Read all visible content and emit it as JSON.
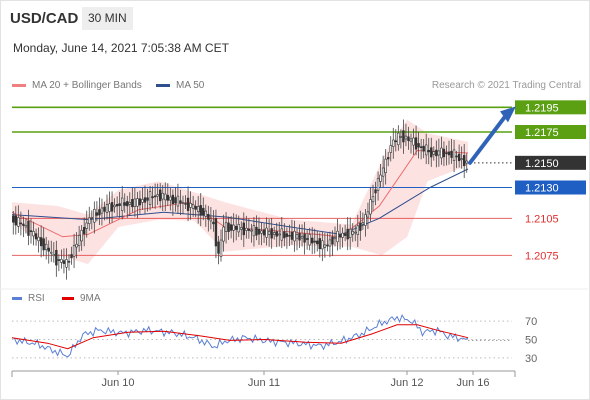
{
  "header": {
    "symbol": "USD/CAD",
    "timeframe": "30 MIN",
    "datetime": "Monday, June 14, 2021 7:05:38 AM CET",
    "credit": "Research © 2021 Trading Central"
  },
  "legend": {
    "bollinger_label": "MA 20 + Bollinger Bands",
    "bollinger_color": "#f08080",
    "ma50_label": "MA 50",
    "ma50_color": "#2f4f8f",
    "rsi_label": "RSI",
    "rsi_color": "#5b7fd4",
    "rsi_ma_label": "9MA",
    "rsi_ma_color": "#e00000"
  },
  "chart_data": [
    {
      "type": "candlestick",
      "title": "",
      "y_range": [
        1.2055,
        1.2205
      ],
      "x_ticks": [
        "Jun 10",
        "Jun 11",
        "Jun 12",
        "Jun 16"
      ],
      "current_price": 1.215,
      "levels": [
        {
          "value": 1.2195,
          "label": "1.2195",
          "kind": "resistance",
          "color": "#5aa012"
        },
        {
          "value": 1.2175,
          "label": "1.2175",
          "kind": "resistance",
          "color": "#5aa012"
        },
        {
          "value": 1.215,
          "label": "1.2150",
          "kind": "last",
          "color": "#333333"
        },
        {
          "value": 1.213,
          "label": "1.2130",
          "kind": "pivot",
          "color": "#1f5fc4"
        },
        {
          "value": 1.2105,
          "label": "1.2105",
          "kind": "support",
          "color": "#e03030"
        },
        {
          "value": 1.2075,
          "label": "1.2075",
          "kind": "support",
          "color": "#e03030"
        }
      ],
      "forecast_arrow": {
        "from": 1.215,
        "to": 1.2195,
        "direction": "up"
      },
      "path_points": [
        [
          0,
          1.2105
        ],
        [
          6,
          1.2098
        ],
        [
          12,
          1.2085
        ],
        [
          18,
          1.2072
        ],
        [
          22,
          1.2068
        ],
        [
          26,
          1.2085
        ],
        [
          31,
          1.2105
        ],
        [
          36,
          1.2112
        ],
        [
          42,
          1.2116
        ],
        [
          50,
          1.2118
        ],
        [
          58,
          1.2124
        ],
        [
          64,
          1.212
        ],
        [
          70,
          1.2116
        ],
        [
          76,
          1.211
        ],
        [
          80,
          1.21
        ],
        [
          82,
          1.2075
        ],
        [
          84,
          1.2098
        ],
        [
          90,
          1.2097
        ],
        [
          98,
          1.2094
        ],
        [
          106,
          1.2092
        ],
        [
          114,
          1.209
        ],
        [
          120,
          1.2086
        ],
        [
          124,
          1.2082
        ],
        [
          128,
          1.209
        ],
        [
          136,
          1.2094
        ],
        [
          140,
          1.2105
        ],
        [
          144,
          1.213
        ],
        [
          148,
          1.215
        ],
        [
          150,
          1.2165
        ],
        [
          154,
          1.2172
        ],
        [
          158,
          1.2168
        ],
        [
          162,
          1.2162
        ],
        [
          166,
          1.2158
        ],
        [
          172,
          1.2158
        ],
        [
          176,
          1.2155
        ],
        [
          180,
          1.215
        ]
      ],
      "ma20_points": [
        [
          0,
          1.211
        ],
        [
          20,
          1.209
        ],
        [
          30,
          1.2092
        ],
        [
          50,
          1.2112
        ],
        [
          70,
          1.2118
        ],
        [
          84,
          1.2098
        ],
        [
          110,
          1.2094
        ],
        [
          130,
          1.209
        ],
        [
          145,
          1.2115
        ],
        [
          160,
          1.216
        ],
        [
          180,
          1.2158
        ]
      ],
      "ma50_points": [
        [
          0,
          1.2108
        ],
        [
          30,
          1.2104
        ],
        [
          60,
          1.211
        ],
        [
          85,
          1.2106
        ],
        [
          110,
          1.2098
        ],
        [
          130,
          1.2092
        ],
        [
          145,
          1.2105
        ],
        [
          165,
          1.213
        ],
        [
          180,
          1.2145
        ]
      ],
      "bb_upper_points": [
        [
          0,
          1.2118
        ],
        [
          18,
          1.2115
        ],
        [
          30,
          1.2108
        ],
        [
          42,
          1.2128
        ],
        [
          58,
          1.2135
        ],
        [
          72,
          1.2126
        ],
        [
          84,
          1.2118
        ],
        [
          110,
          1.2104
        ],
        [
          134,
          1.21
        ],
        [
          148,
          1.216
        ],
        [
          156,
          1.2185
        ],
        [
          164,
          1.2174
        ],
        [
          180,
          1.2167
        ]
      ],
      "bb_lower_points": [
        [
          0,
          1.2102
        ],
        [
          18,
          1.2075
        ],
        [
          30,
          1.2068
        ],
        [
          42,
          1.2098
        ],
        [
          58,
          1.2104
        ],
        [
          72,
          1.2103
        ],
        [
          84,
          1.2078
        ],
        [
          110,
          1.2083
        ],
        [
          134,
          1.2082
        ],
        [
          146,
          1.2075
        ],
        [
          156,
          1.209
        ],
        [
          164,
          1.2135
        ],
        [
          180,
          1.2148
        ]
      ]
    },
    {
      "type": "line",
      "title": "",
      "y_range": [
        20,
        80
      ],
      "y_ticks": [
        30,
        50,
        70
      ],
      "series": [
        {
          "name": "RSI",
          "values": [
            [
              0,
              50
            ],
            [
              10,
              45
            ],
            [
              18,
              36
            ],
            [
              22,
              32
            ],
            [
              28,
              55
            ],
            [
              34,
              60
            ],
            [
              44,
              57
            ],
            [
              54,
              60
            ],
            [
              64,
              57
            ],
            [
              72,
              52
            ],
            [
              80,
              42
            ],
            [
              84,
              48
            ],
            [
              92,
              52
            ],
            [
              102,
              48
            ],
            [
              112,
              46
            ],
            [
              122,
              43
            ],
            [
              130,
              48
            ],
            [
              138,
              56
            ],
            [
              146,
              68
            ],
            [
              152,
              74
            ],
            [
              158,
              70
            ],
            [
              162,
              58
            ],
            [
              168,
              60
            ],
            [
              172,
              54
            ],
            [
              176,
              52
            ],
            [
              180,
              49
            ]
          ]
        },
        {
          "name": "9MA",
          "values": [
            [
              0,
              52
            ],
            [
              14,
              46
            ],
            [
              22,
              40
            ],
            [
              32,
              52
            ],
            [
              46,
              58
            ],
            [
              60,
              59
            ],
            [
              74,
              54
            ],
            [
              86,
              49
            ],
            [
              100,
              50
            ],
            [
              116,
              47
            ],
            [
              130,
              46
            ],
            [
              142,
              56
            ],
            [
              152,
              66
            ],
            [
              160,
              66
            ],
            [
              168,
              60
            ],
            [
              180,
              52
            ]
          ]
        }
      ]
    }
  ]
}
